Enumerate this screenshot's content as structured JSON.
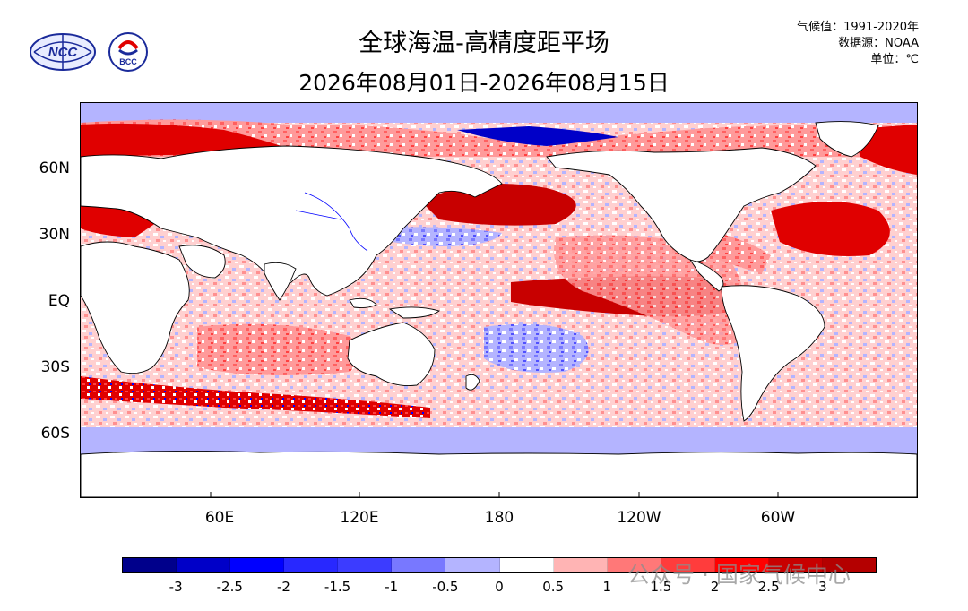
{
  "title_line1": "全球海温-高精度距平场",
  "title_line2": "2026年08月01日-2026年08月15日",
  "meta": {
    "baseline": "气候值：1991-2020年",
    "source": "数据源：NOAA",
    "unit": "单位：℃"
  },
  "logos": {
    "ncc": {
      "name": "NCC",
      "text": "NCC"
    },
    "bcc": {
      "name": "BCC",
      "text": "BCC"
    }
  },
  "lat_labels": [
    "60N",
    "30N",
    "EQ",
    "30S",
    "60S"
  ],
  "lon_labels": [
    "60E",
    "120E",
    "180",
    "120W",
    "60W"
  ],
  "colorbar": {
    "ticks": [
      "-3",
      "-2.5",
      "-2",
      "-1.5",
      "-1",
      "-0.5",
      "0",
      "0.5",
      "1",
      "1.5",
      "2",
      "2.5",
      "3"
    ],
    "colors": [
      "#00008b",
      "#0000c8",
      "#0000ff",
      "#2828ff",
      "#3c3cff",
      "#7878ff",
      "#b4b4ff",
      "#ffffff",
      "#ffb4b4",
      "#ff7878",
      "#ff3c3c",
      "#ff0000",
      "#c80000",
      "#b40000"
    ]
  },
  "watermark": "公众号 · 国家气候中心",
  "colors": {
    "land": "#ffffff",
    "ocean_neutral": "#ffc8c8",
    "coastline": "#000000",
    "river": "#0000ff",
    "ice_cold": "#b4b4ff"
  }
}
